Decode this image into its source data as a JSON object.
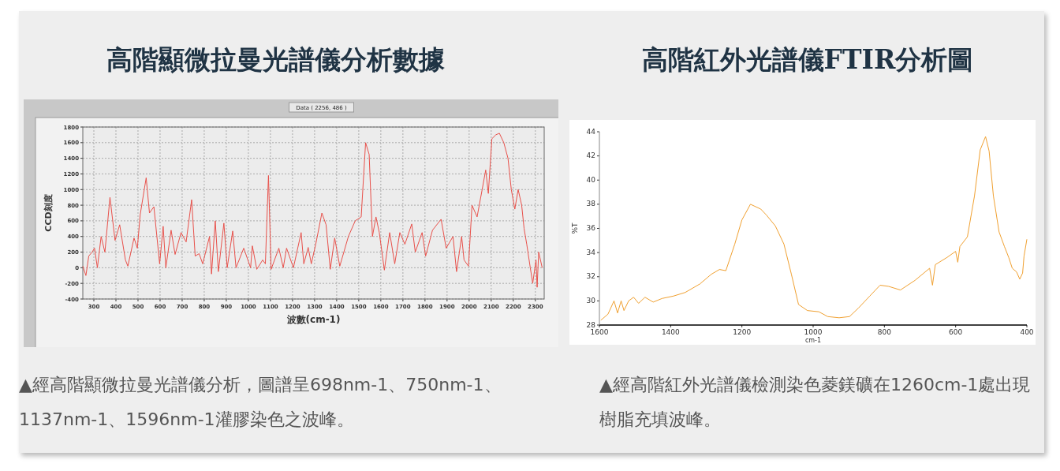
{
  "chart_data": [
    {
      "type": "line",
      "title": "高階顯微拉曼光譜儀分析數據",
      "xlabel": "波數(cm-1)",
      "ylabel": "CCD刻度",
      "xlim": [
        250,
        2340
      ],
      "xticks": [
        300,
        400,
        500,
        600,
        700,
        800,
        900,
        1000,
        1100,
        1200,
        1300,
        1400,
        1500,
        1600,
        1700,
        1800,
        1900,
        2000,
        2100,
        2200,
        2300
      ],
      "ylim": [
        -400,
        1800
      ],
      "yticks": [
        -400,
        -200,
        0,
        200,
        400,
        600,
        800,
        1000,
        1200,
        1400,
        1600,
        1800
      ],
      "grid": true,
      "series": [
        {
          "color": "#e8504a",
          "x": [
            250,
            264,
            277,
            292,
            303,
            316,
            333,
            350,
            373,
            396,
            417,
            443,
            454,
            482,
            497,
            510,
            537,
            552,
            572,
            598,
            614,
            626,
            650,
            668,
            695,
            718,
            743,
            759,
            777,
            793,
            824,
            833,
            850,
            864,
            889,
            904,
            929,
            944,
            979,
            1010,
            1018,
            1038,
            1065,
            1077,
            1091,
            1103,
            1138,
            1158,
            1173,
            1204,
            1239,
            1251,
            1271,
            1285,
            1305,
            1333,
            1352,
            1371,
            1391,
            1414,
            1453,
            1484,
            1511,
            1531,
            1547,
            1562,
            1578,
            1593,
            1616,
            1640,
            1663,
            1686,
            1709,
            1740,
            1756,
            1787,
            1803,
            1834,
            1873,
            1896,
            1927,
            1943,
            1966,
            1977,
            1997,
            2013,
            2036,
            2059,
            2075,
            2087,
            2103,
            2121,
            2137,
            2157,
            2176,
            2191,
            2207,
            2222,
            2238,
            2249,
            2261,
            2277,
            2288,
            2303,
            2308,
            2315,
            2331
          ],
          "values": [
            20,
            -100,
            150,
            200,
            250,
            0,
            400,
            200,
            900,
            350,
            550,
            100,
            20,
            380,
            250,
            680,
            1150,
            700,
            780,
            50,
            530,
            0,
            480,
            170,
            450,
            330,
            870,
            150,
            180,
            50,
            400,
            -80,
            600,
            -50,
            570,
            0,
            470,
            0,
            250,
            0,
            280,
            -20,
            100,
            50,
            1180,
            -20,
            250,
            0,
            250,
            0,
            450,
            50,
            260,
            50,
            300,
            700,
            550,
            -20,
            380,
            20,
            400,
            600,
            650,
            1600,
            1450,
            400,
            650,
            450,
            -30,
            450,
            50,
            450,
            300,
            560,
            200,
            450,
            150,
            480,
            620,
            250,
            400,
            -50,
            400,
            100,
            20,
            800,
            650,
            1000,
            1250,
            950,
            1650,
            1700,
            1720,
            1600,
            1400,
            1000,
            750,
            1000,
            800,
            500,
            300,
            0,
            -200,
            100,
            -250,
            200,
            0
          ]
        }
      ],
      "annotations": [
        "Data ( 2256, 486 )",
        "▲經高階顯微拉曼光譜儀分析，圖譜呈698nm-1、750nm-1、1137nm-1、1596nm-1灌膠染色之波峰。"
      ]
    },
    {
      "type": "line",
      "title": "高階紅外光譜儀FTIR分析圖",
      "xlabel": "cm-1",
      "ylabel": "%T",
      "xlim": [
        1600,
        400
      ],
      "xticks": [
        1600,
        1400,
        1200,
        1000,
        800,
        600,
        400
      ],
      "ylim": [
        28,
        44
      ],
      "yticks": [
        28,
        30,
        32,
        34,
        36,
        38,
        40,
        42,
        44
      ],
      "series": [
        {
          "color": "#f0a030",
          "x": [
            1596,
            1576,
            1559,
            1549,
            1539,
            1531,
            1518,
            1504,
            1490,
            1472,
            1449,
            1424,
            1392,
            1359,
            1318,
            1286,
            1263,
            1245,
            1220,
            1200,
            1176,
            1147,
            1131,
            1106,
            1082,
            1061,
            1041,
            1016,
            984,
            959,
            927,
            898,
            873,
            841,
            812,
            788,
            755,
            714,
            673,
            665,
            657,
            624,
            600,
            594,
            588,
            567,
            547,
            531,
            516,
            506,
            494,
            478,
            463,
            451,
            441,
            429,
            420,
            412,
            408,
            400
          ],
          "values": [
            28.4,
            28.9,
            30.0,
            29.0,
            30.0,
            29.2,
            30.0,
            30.3,
            29.8,
            30.3,
            29.9,
            30.2,
            30.4,
            30.7,
            31.4,
            32.2,
            32.6,
            32.5,
            34.7,
            36.7,
            38.0,
            37.6,
            37.1,
            36.2,
            34.7,
            32.2,
            29.7,
            29.2,
            29.1,
            28.7,
            28.6,
            28.7,
            29.4,
            30.4,
            31.3,
            31.2,
            30.9,
            31.7,
            32.7,
            31.3,
            33.0,
            33.6,
            34.1,
            33.2,
            34.5,
            35.3,
            38.7,
            42.5,
            43.6,
            42.4,
            38.7,
            35.7,
            34.5,
            33.6,
            32.7,
            32.4,
            31.8,
            32.3,
            33.7,
            35.1
          ]
        }
      ],
      "annotations": [
        "▲經高階紅外光譜儀檢測染色菱鎂礦在1260cm-1處出現樹脂充填波峰。"
      ]
    }
  ]
}
